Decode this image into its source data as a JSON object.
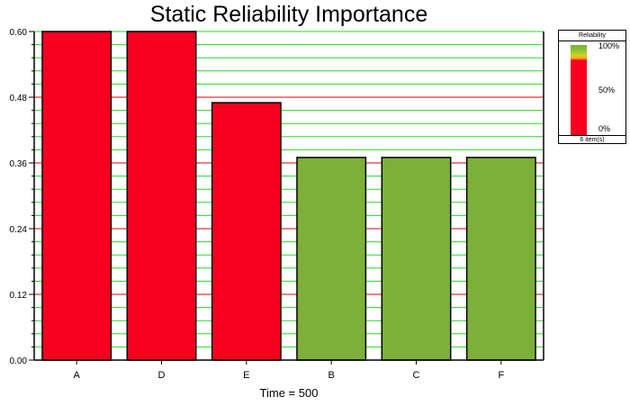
{
  "chart_data": {
    "type": "bar",
    "title": "Static Reliability Importance",
    "xlabel": "Time = 500",
    "ylabel": "",
    "categories": [
      "A",
      "D",
      "E",
      "B",
      "C",
      "F"
    ],
    "values": [
      0.6,
      0.6,
      0.47,
      0.37,
      0.37,
      0.37
    ],
    "ylim": [
      0,
      0.6
    ],
    "yticks": [
      "0.00",
      "0.12",
      "0.24",
      "0.36",
      "0.48",
      "0.60"
    ],
    "grid": "on",
    "bar_colors": [
      "#f5001f",
      "#f5001f",
      "#f5001f",
      "#7cb03a",
      "#7cb03a",
      "#7cb03a"
    ],
    "legend": {
      "title": "Reliability",
      "placement": "right",
      "ticks": [
        "100%",
        "50%",
        "0%"
      ],
      "count_label": "6 item(s)",
      "colors": [
        "#7ab12f",
        "#f5001f"
      ]
    }
  },
  "colors": {
    "minor_grid": "#22dd22",
    "major_grid": "#e00000",
    "axis": "#000000"
  }
}
